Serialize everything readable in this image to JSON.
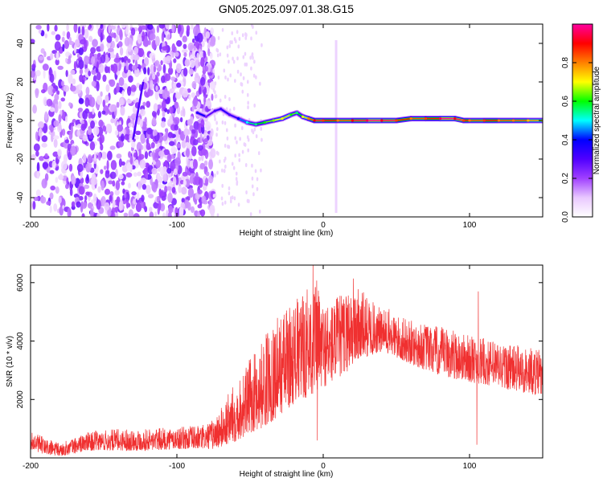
{
  "title": "GN05.2025.097.01.38.G15",
  "chart_data": [
    {
      "type": "heatmap",
      "xlabel": "Height of straight line (km)",
      "ylabel": "Frequency (Hz)",
      "xlim": [
        -200,
        150
      ],
      "ylim": [
        -50,
        50
      ],
      "xticks": [
        -200,
        -100,
        0,
        100
      ],
      "yticks": [
        -40,
        -20,
        0,
        20,
        40
      ],
      "colorbar": {
        "label": "Normalized spectral amplitude",
        "range": [
          0.0,
          1.0
        ],
        "ticks": [
          0.0,
          0.2,
          0.4,
          0.6,
          0.8
        ],
        "colors": [
          "#ffffff",
          "#e9c8ff",
          "#a040ff",
          "#5000ff",
          "#0000ff",
          "#00ffff",
          "#00ff00",
          "#ffff00",
          "#ff8000",
          "#ff0000",
          "#ff00a0"
        ]
      },
      "signal_trace": {
        "x": [
          -86,
          -80,
          -74,
          -70,
          -64,
          -58,
          -52,
          -46,
          -40,
          -34,
          -28,
          -22,
          -18,
          -14,
          -10,
          -6,
          0,
          10,
          20,
          30,
          40,
          50,
          60,
          70,
          80,
          90,
          96,
          100,
          110,
          120,
          130,
          140,
          150
        ],
        "frequency": [
          4,
          2,
          5,
          6,
          3,
          1,
          -1,
          -2,
          -1,
          0,
          1,
          3,
          4,
          2,
          1,
          0,
          0,
          0,
          0,
          0,
          0,
          0,
          1,
          1,
          1,
          1,
          0,
          0,
          0,
          0,
          0,
          0,
          0
        ],
        "amplitude": [
          0.35,
          0.25,
          0.3,
          0.32,
          0.3,
          0.4,
          0.5,
          0.55,
          0.6,
          0.65,
          0.7,
          0.6,
          0.55,
          0.7,
          0.8,
          0.9,
          0.85,
          0.8,
          0.9,
          0.95,
          0.92,
          0.85,
          0.8,
          0.85,
          0.95,
          0.92,
          0.85,
          0.8,
          0.85,
          0.8,
          0.8,
          0.75,
          0.7
        ]
      },
      "noise_region": {
        "x": [
          -200,
          -75
        ],
        "y": [
          -50,
          50
        ],
        "amplitude": [
          0.05,
          0.25
        ]
      }
    },
    {
      "type": "line",
      "xlabel": "Height of straight line (km)",
      "ylabel": "SNR (10 * v/v)",
      "xlim": [
        -200,
        150
      ],
      "ylim": [
        0,
        6600
      ],
      "xticks": [
        -200,
        -100,
        0,
        100
      ],
      "yticks": [
        2000,
        4000,
        6000
      ],
      "color": "#f03030",
      "envelope": {
        "x": [
          -200,
          -190,
          -180,
          -160,
          -140,
          -120,
          -100,
          -90,
          -80,
          -75,
          -70,
          -65,
          -60,
          -55,
          -50,
          -45,
          -40,
          -35,
          -30,
          -25,
          -20,
          -15,
          -10,
          -5,
          0,
          5,
          10,
          15,
          20,
          25,
          30,
          35,
          40,
          45,
          50,
          60,
          70,
          80,
          90,
          100,
          110,
          120,
          130,
          140,
          150
        ],
        "low": [
          300,
          100,
          50,
          250,
          250,
          250,
          300,
          300,
          300,
          300,
          350,
          450,
          550,
          700,
          850,
          950,
          1050,
          1250,
          1450,
          1650,
          1850,
          1950,
          2100,
          2250,
          2400,
          2550,
          2700,
          2900,
          3100,
          3300,
          3450,
          3550,
          3600,
          3550,
          3400,
          3200,
          3000,
          2800,
          2700,
          2600,
          2500,
          2400,
          2300,
          2200,
          2100
        ],
        "high": [
          900,
          700,
          500,
          900,
          1000,
          1000,
          1050,
          1100,
          1150,
          1350,
          1700,
          2200,
          2600,
          3000,
          3400,
          3800,
          4200,
          4700,
          4900,
          5200,
          5400,
          5600,
          6000,
          6200,
          5400,
          5400,
          5600,
          5700,
          6300,
          5800,
          5600,
          5300,
          5100,
          5100,
          4900,
          4700,
          4600,
          4500,
          4400,
          4200,
          4100,
          4000,
          3900,
          3800,
          3700
        ]
      },
      "spikes": [
        {
          "x": -7,
          "y": 6600
        },
        {
          "x": -4,
          "y": 600
        },
        {
          "x": 106,
          "y": 5700
        },
        {
          "x": 105,
          "y": 450
        }
      ]
    }
  ]
}
